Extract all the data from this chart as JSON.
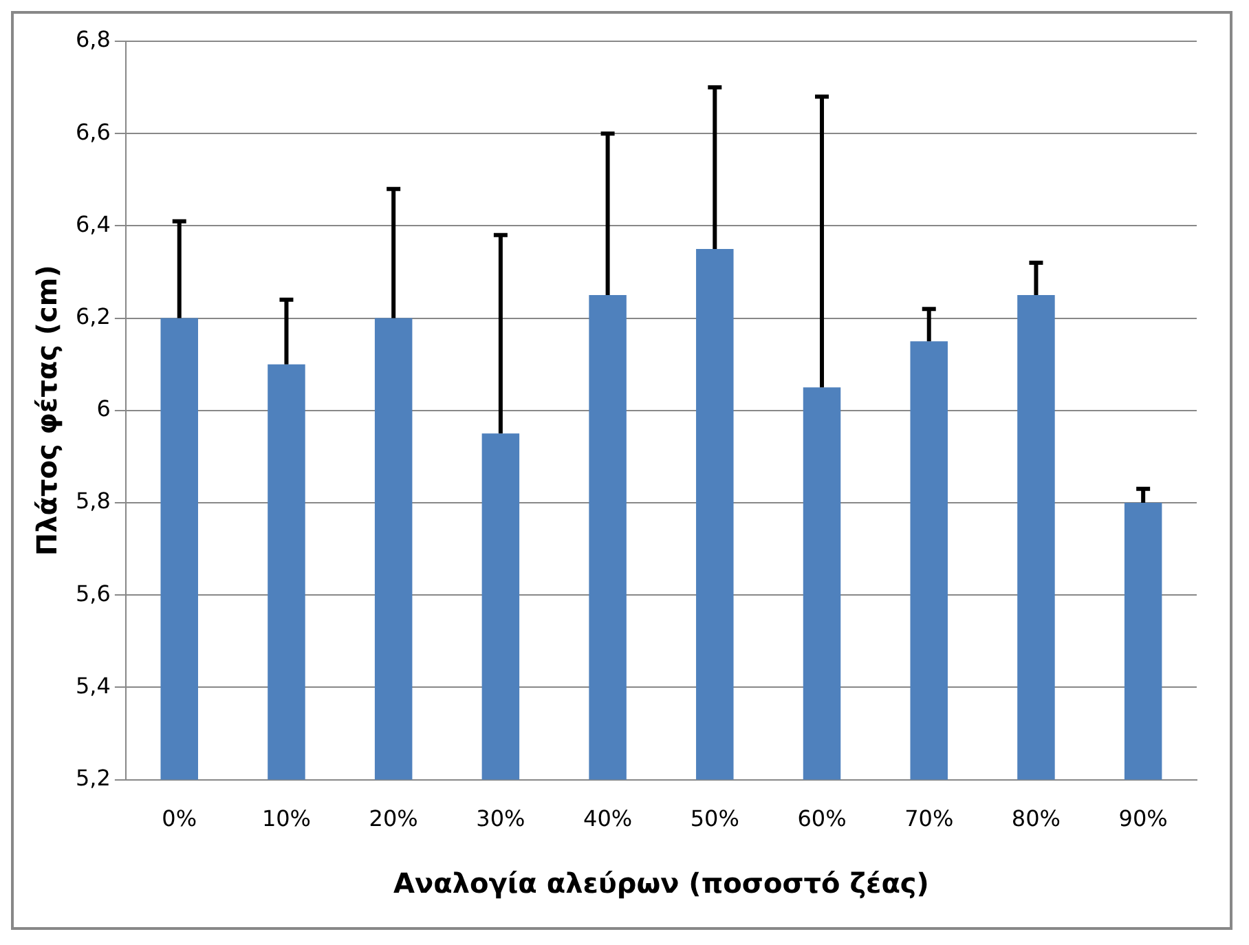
{
  "chart_data": {
    "type": "bar",
    "xlabel": "Αναλογία αλεύρων (ποσοστό ζέας)",
    "ylabel": "Πλάτος φέτας (cm)",
    "categories": [
      "0%",
      "10%",
      "20%",
      "30%",
      "40%",
      "50%",
      "60%",
      "70%",
      "80%",
      "90%"
    ],
    "values": [
      6.2,
      6.1,
      6.2,
      5.95,
      6.25,
      6.35,
      6.05,
      6.15,
      6.25,
      5.8
    ],
    "errors": [
      [
        6.2,
        6.41
      ],
      [
        6.1,
        6.24
      ],
      [
        6.2,
        6.48
      ],
      [
        5.95,
        6.38
      ],
      [
        6.25,
        6.6
      ],
      [
        6.35,
        6.7
      ],
      [
        6.05,
        6.68
      ],
      [
        6.15,
        6.22
      ],
      [
        6.25,
        6.32
      ],
      [
        5.8,
        5.83
      ]
    ],
    "color": "#4f81bd",
    "ylim": [
      5.2,
      6.8
    ],
    "yticks": [
      {
        "value": 5.2,
        "label": "5,2"
      },
      {
        "value": 5.4,
        "label": "5,4"
      },
      {
        "value": 5.6,
        "label": "5,6"
      },
      {
        "value": 5.8,
        "label": "5,8"
      },
      6,
      {
        "value": 6.2,
        "label": "6,2"
      },
      {
        "value": 6.4,
        "label": "6,4"
      },
      {
        "value": 6.6,
        "label": "6,6"
      },
      {
        "value": 6.8,
        "label": "6,8"
      }
    ],
    "grid": "y"
  }
}
